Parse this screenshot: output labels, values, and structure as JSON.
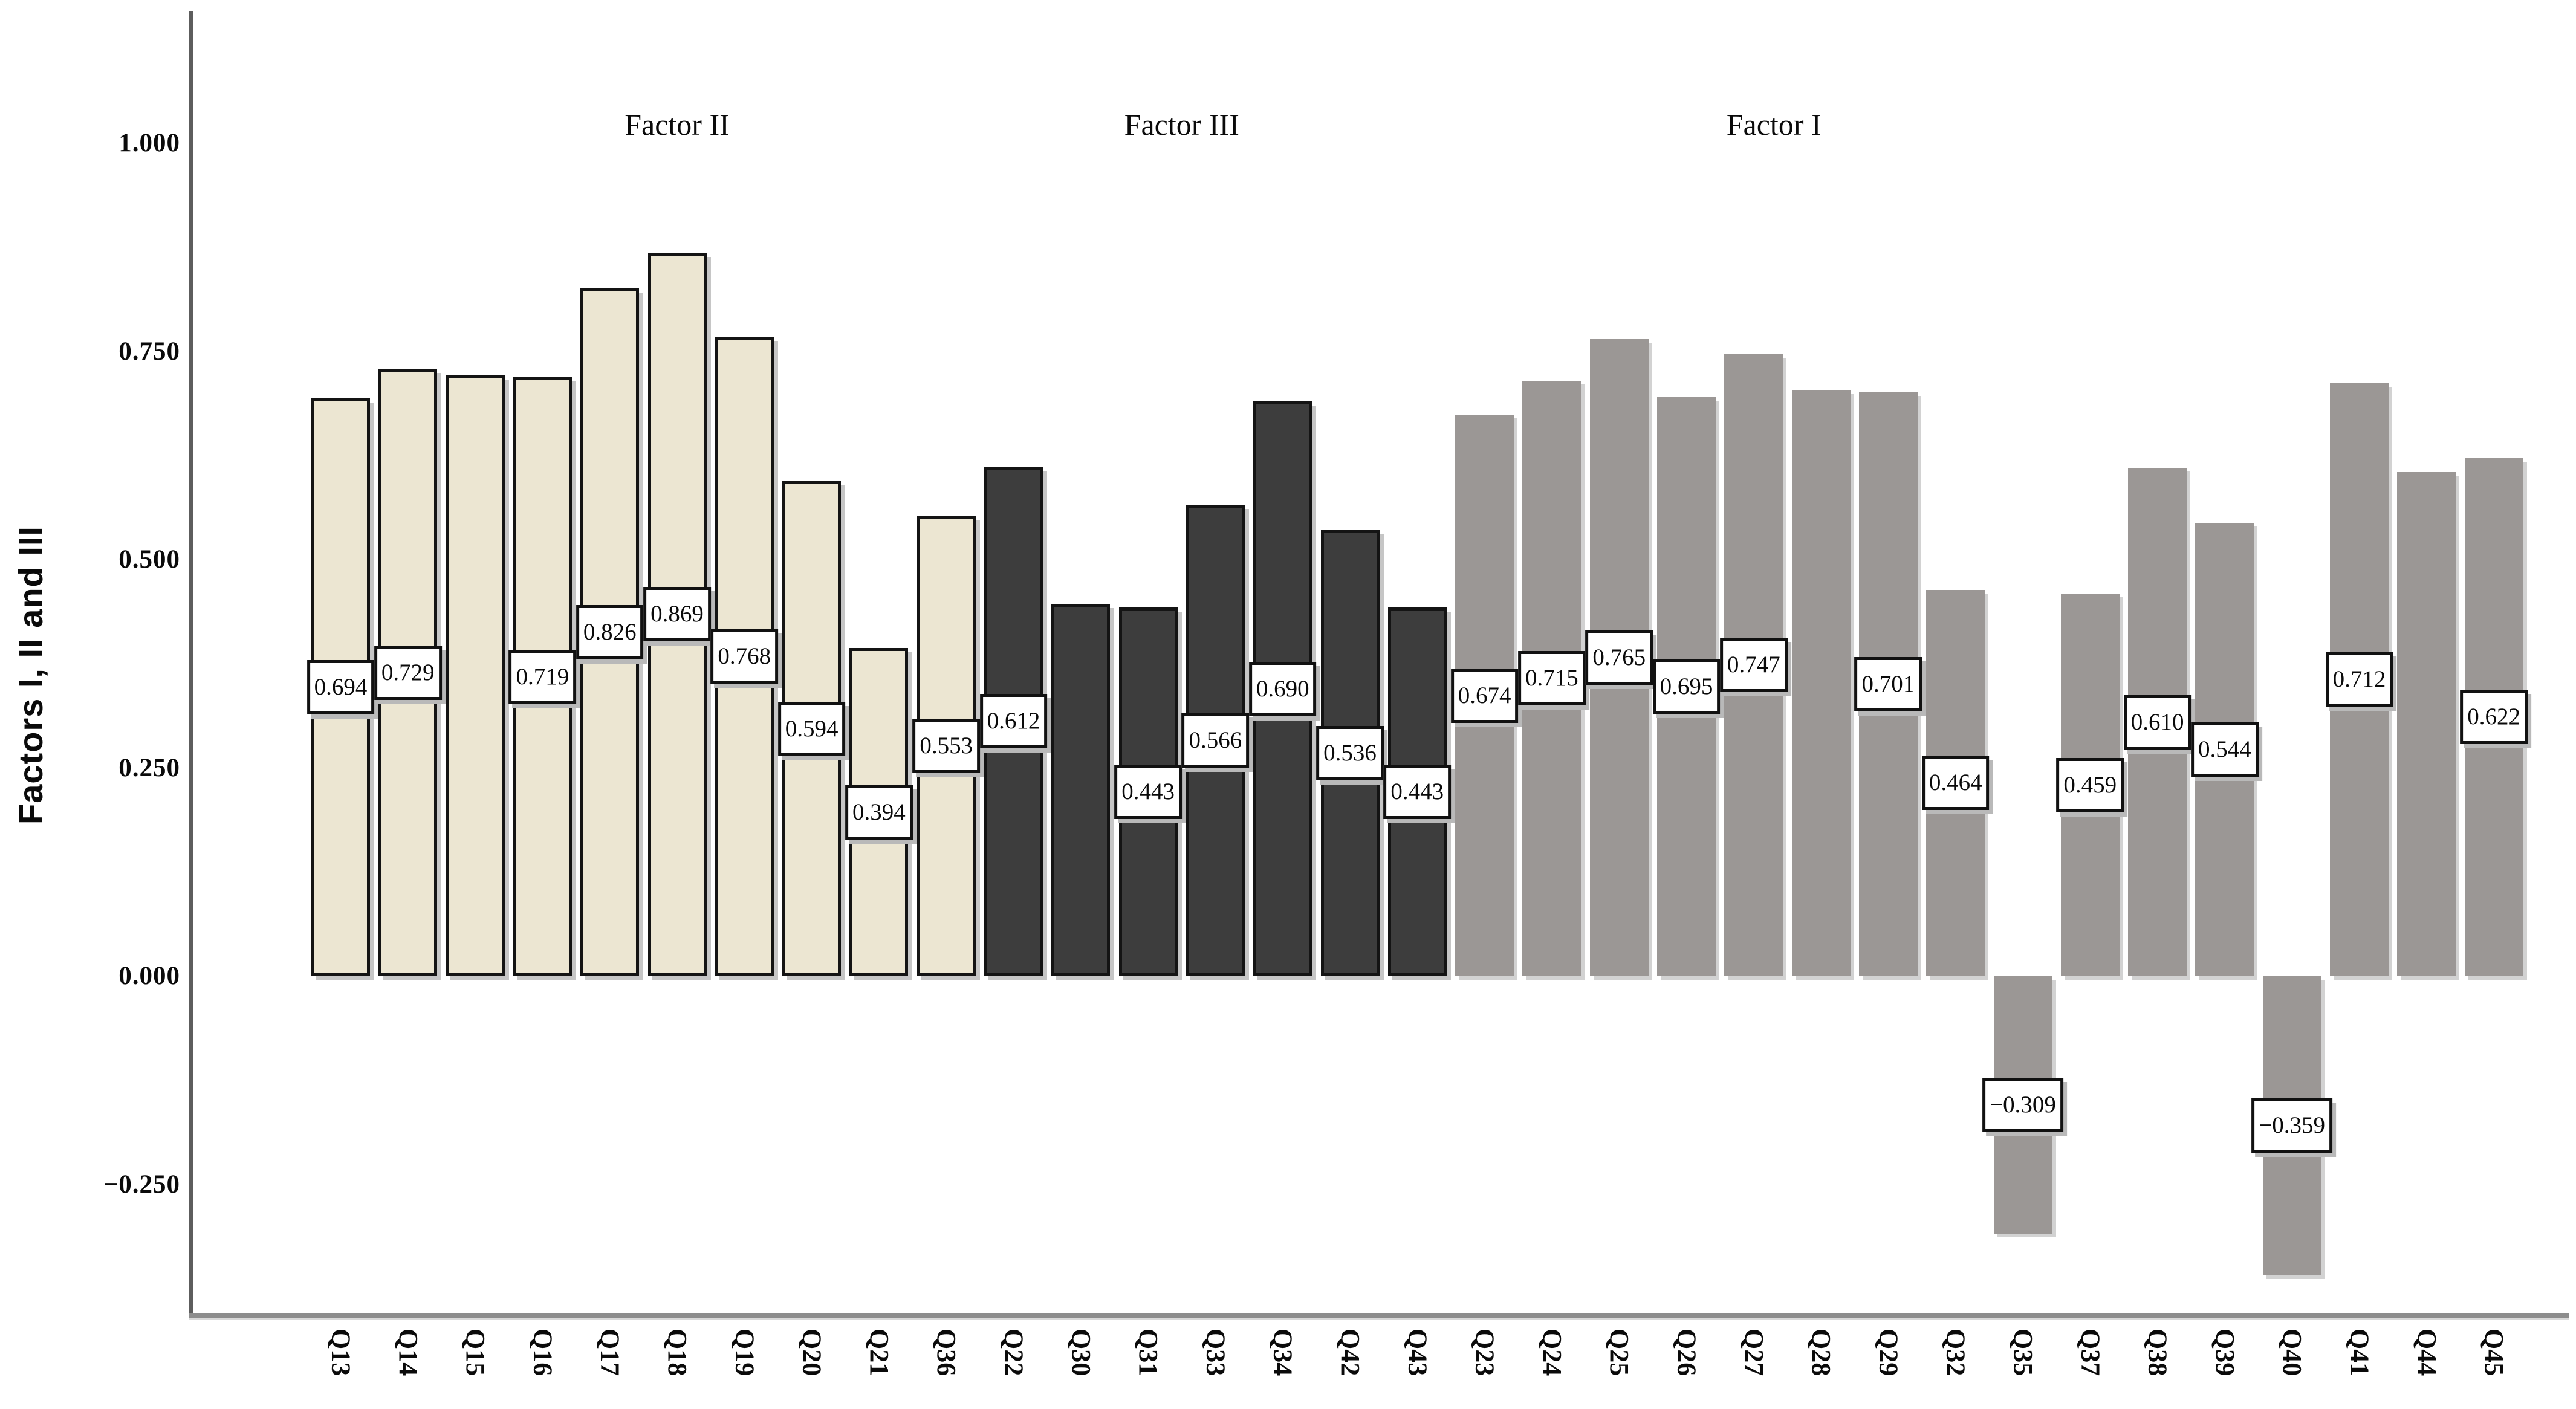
{
  "chart_data": {
    "type": "bar",
    "title": "",
    "ylabel": "Factors I, II and III",
    "xlabel": "",
    "grid": false,
    "legend": false,
    "ylim": [
      -0.41,
      1.16
    ],
    "yticks": [
      {
        "label": "1.000",
        "value": 1.0
      },
      {
        "label": "0.750",
        "value": 0.75
      },
      {
        "label": "0.500",
        "value": 0.5
      },
      {
        "label": "0.250",
        "value": 0.25
      },
      {
        "label": "0.000",
        "value": 0.0
      },
      {
        "label": "−0.250",
        "value": -0.25
      }
    ],
    "group_titles": [
      {
        "label": "Factor II"
      },
      {
        "label": "Factor III"
      },
      {
        "label": "Factor I"
      }
    ],
    "groups": [
      {
        "name": "Factor II",
        "color": "#ECE6D2",
        "bordered": true
      },
      {
        "name": "Factor III",
        "color": "#3D3D3D",
        "bordered": true
      },
      {
        "name": "Factor I",
        "color": "#9B9795",
        "bordered": false
      }
    ],
    "bars": [
      {
        "category": "Q13",
        "value": 0.694,
        "label": "0.694",
        "group": "Factor II"
      },
      {
        "category": "Q14",
        "value": 0.729,
        "label": "0.729",
        "group": "Factor II"
      },
      {
        "category": "Q15",
        "value": 0.721,
        "label": null,
        "group": "Factor II"
      },
      {
        "category": "Q16",
        "value": 0.719,
        "label": "0.719",
        "group": "Factor II"
      },
      {
        "category": "Q17",
        "value": 0.826,
        "label": "0.826",
        "group": "Factor II"
      },
      {
        "category": "Q18",
        "value": 0.869,
        "label": "0.869",
        "group": "Factor II"
      },
      {
        "category": "Q19",
        "value": 0.768,
        "label": "0.768",
        "group": "Factor II"
      },
      {
        "category": "Q20",
        "value": 0.594,
        "label": "0.594",
        "group": "Factor II"
      },
      {
        "category": "Q21",
        "value": 0.394,
        "label": "0.394",
        "group": "Factor II"
      },
      {
        "category": "Q36",
        "value": 0.553,
        "label": "0.553",
        "group": "Factor II"
      },
      {
        "category": "Q22",
        "value": 0.612,
        "label": "0.612",
        "group": "Factor III"
      },
      {
        "category": "Q30",
        "value": 0.447,
        "label": null,
        "group": "Factor III"
      },
      {
        "category": "Q31",
        "value": 0.443,
        "label": "0.443",
        "group": "Factor III"
      },
      {
        "category": "Q33",
        "value": 0.566,
        "label": "0.566",
        "group": "Factor III"
      },
      {
        "category": "Q34",
        "value": 0.69,
        "label": "0.690",
        "group": "Factor III"
      },
      {
        "category": "Q42",
        "value": 0.536,
        "label": "0.536",
        "group": "Factor III"
      },
      {
        "category": "Q43",
        "value": 0.443,
        "label": "0.443",
        "group": "Factor III"
      },
      {
        "category": "Q23",
        "value": 0.674,
        "label": "0.674",
        "group": "Factor I"
      },
      {
        "category": "Q24",
        "value": 0.715,
        "label": "0.715",
        "group": "Factor I"
      },
      {
        "category": "Q25",
        "value": 0.765,
        "label": "0.765",
        "group": "Factor I"
      },
      {
        "category": "Q26",
        "value": 0.695,
        "label": "0.695",
        "group": "Factor I"
      },
      {
        "category": "Q27",
        "value": 0.747,
        "label": "0.747",
        "group": "Factor I"
      },
      {
        "category": "Q28",
        "value": 0.703,
        "label": null,
        "group": "Factor I"
      },
      {
        "category": "Q29",
        "value": 0.701,
        "label": "0.701",
        "group": "Factor I"
      },
      {
        "category": "Q32",
        "value": 0.464,
        "label": "0.464",
        "group": "Factor I"
      },
      {
        "category": "Q35",
        "value": -0.309,
        "label": "−0.309",
        "group": "Factor I"
      },
      {
        "category": "Q37",
        "value": 0.459,
        "label": "0.459",
        "group": "Factor I"
      },
      {
        "category": "Q38",
        "value": 0.61,
        "label": "0.610",
        "group": "Factor I"
      },
      {
        "category": "Q39",
        "value": 0.544,
        "label": "0.544",
        "group": "Factor I"
      },
      {
        "category": "Q40",
        "value": -0.359,
        "label": "−0.359",
        "group": "Factor I"
      },
      {
        "category": "Q41",
        "value": 0.712,
        "label": "0.712",
        "group": "Factor I"
      },
      {
        "category": "Q44",
        "value": 0.605,
        "label": null,
        "group": "Factor I"
      },
      {
        "category": "Q45",
        "value": 0.622,
        "label": "0.622",
        "group": "Factor I"
      }
    ]
  }
}
